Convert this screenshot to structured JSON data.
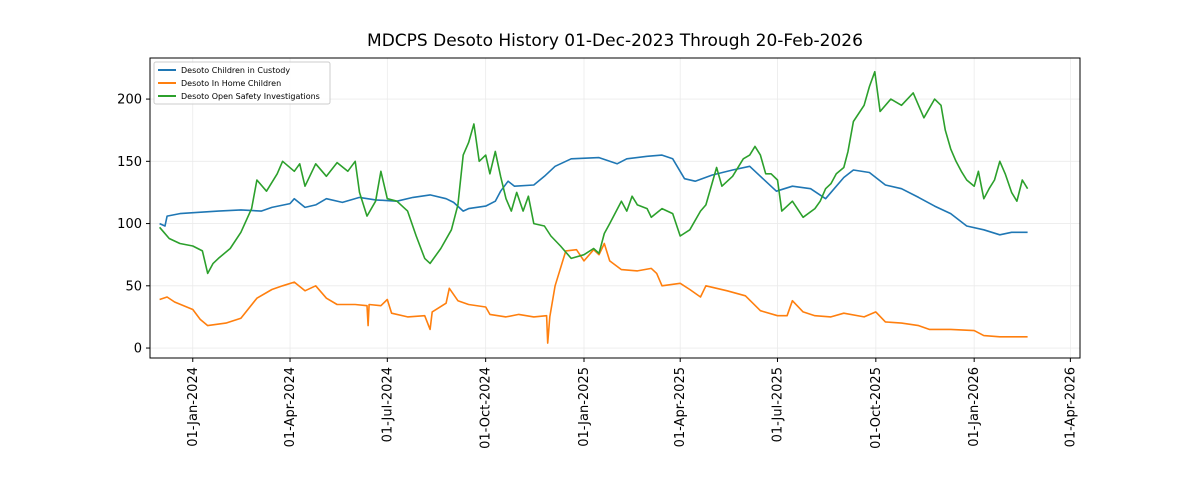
{
  "chart_data": {
    "type": "line",
    "title": "MDCPS Desoto History 01-Dec-2023 Through 20-Feb-2026",
    "xlabel": "",
    "ylabel": "",
    "x_range": [
      "2023-11-22",
      "2026-04-10"
    ],
    "ylim": [
      -8,
      233
    ],
    "grid": true,
    "legend_position": "upper-left",
    "x_ticks": [
      "01-Jan-2024",
      "01-Apr-2024",
      "01-Jul-2024",
      "01-Oct-2024",
      "01-Jan-2025",
      "01-Apr-2025",
      "01-Jul-2025",
      "01-Oct-2025",
      "01-Jan-2026",
      "01-Apr-2026"
    ],
    "x_tick_dates": [
      "2024-01-01",
      "2024-04-01",
      "2024-07-01",
      "2024-10-01",
      "2025-01-01",
      "2025-04-01",
      "2025-07-01",
      "2025-10-01",
      "2026-01-01",
      "2026-04-01"
    ],
    "y_ticks": [
      0,
      50,
      100,
      150,
      200
    ],
    "series": [
      {
        "name": "Desoto Children in Custody",
        "color": "#1f77b4",
        "points": [
          [
            "2023-12-01",
            100
          ],
          [
            "2023-12-06",
            98
          ],
          [
            "2023-12-08",
            106
          ],
          [
            "2023-12-20",
            108
          ],
          [
            "2024-01-05",
            109
          ],
          [
            "2024-01-25",
            110
          ],
          [
            "2024-02-15",
            111
          ],
          [
            "2024-03-05",
            110
          ],
          [
            "2024-03-15",
            113
          ],
          [
            "2024-04-01",
            116
          ],
          [
            "2024-04-05",
            120
          ],
          [
            "2024-04-15",
            113
          ],
          [
            "2024-04-25",
            115
          ],
          [
            "2024-05-05",
            120
          ],
          [
            "2024-05-20",
            117
          ],
          [
            "2024-06-05",
            121
          ],
          [
            "2024-06-20",
            119
          ],
          [
            "2024-07-10",
            118
          ],
          [
            "2024-07-25",
            121
          ],
          [
            "2024-08-10",
            123
          ],
          [
            "2024-08-25",
            120
          ],
          [
            "2024-09-01",
            117
          ],
          [
            "2024-09-10",
            110
          ],
          [
            "2024-09-15",
            112
          ],
          [
            "2024-10-01",
            114
          ],
          [
            "2024-10-10",
            118
          ],
          [
            "2024-10-15",
            126
          ],
          [
            "2024-10-22",
            134
          ],
          [
            "2024-10-28",
            130
          ],
          [
            "2024-11-15",
            131
          ],
          [
            "2024-11-25",
            138
          ],
          [
            "2024-12-05",
            146
          ],
          [
            "2024-12-20",
            152
          ],
          [
            "2025-01-15",
            153
          ],
          [
            "2025-02-01",
            148
          ],
          [
            "2025-02-10",
            152
          ],
          [
            "2025-03-01",
            154
          ],
          [
            "2025-03-15",
            155
          ],
          [
            "2025-03-25",
            152
          ],
          [
            "2025-04-05",
            136
          ],
          [
            "2025-04-15",
            134
          ],
          [
            "2025-05-01",
            139
          ],
          [
            "2025-05-20",
            143
          ],
          [
            "2025-06-05",
            146
          ],
          [
            "2025-06-15",
            138
          ],
          [
            "2025-06-30",
            126
          ],
          [
            "2025-07-15",
            130
          ],
          [
            "2025-08-01",
            128
          ],
          [
            "2025-08-15",
            120
          ],
          [
            "2025-09-01",
            137
          ],
          [
            "2025-09-10",
            143
          ],
          [
            "2025-09-25",
            141
          ],
          [
            "2025-10-10",
            131
          ],
          [
            "2025-10-25",
            128
          ],
          [
            "2025-11-10",
            121
          ],
          [
            "2025-11-25",
            114
          ],
          [
            "2025-12-10",
            108
          ],
          [
            "2025-12-25",
            98
          ],
          [
            "2026-01-10",
            95
          ],
          [
            "2026-01-25",
            91
          ],
          [
            "2026-02-05",
            93
          ],
          [
            "2026-02-20",
            93
          ]
        ]
      },
      {
        "name": "Desoto In Home Children",
        "color": "#ff7f0e",
        "points": [
          [
            "2023-12-01",
            39
          ],
          [
            "2023-12-08",
            41
          ],
          [
            "2023-12-15",
            37
          ],
          [
            "2024-01-01",
            31
          ],
          [
            "2024-01-08",
            23
          ],
          [
            "2024-01-15",
            18
          ],
          [
            "2024-02-01",
            20
          ],
          [
            "2024-02-15",
            24
          ],
          [
            "2024-03-01",
            40
          ],
          [
            "2024-03-15",
            47
          ],
          [
            "2024-03-25",
            50
          ],
          [
            "2024-04-05",
            53
          ],
          [
            "2024-04-15",
            46
          ],
          [
            "2024-04-25",
            50
          ],
          [
            "2024-05-05",
            40
          ],
          [
            "2024-05-15",
            35
          ],
          [
            "2024-06-01",
            35
          ],
          [
            "2024-06-12",
            34
          ],
          [
            "2024-06-13",
            18
          ],
          [
            "2024-06-14",
            35
          ],
          [
            "2024-06-25",
            34
          ],
          [
            "2024-07-01",
            39
          ],
          [
            "2024-07-05",
            28
          ],
          [
            "2024-07-20",
            25
          ],
          [
            "2024-08-05",
            26
          ],
          [
            "2024-08-10",
            15
          ],
          [
            "2024-08-12",
            29
          ],
          [
            "2024-08-25",
            36
          ],
          [
            "2024-08-28",
            48
          ],
          [
            "2024-09-05",
            38
          ],
          [
            "2024-09-15",
            35
          ],
          [
            "2024-10-01",
            33
          ],
          [
            "2024-10-05",
            27
          ],
          [
            "2024-10-20",
            25
          ],
          [
            "2024-11-01",
            27
          ],
          [
            "2024-11-15",
            25
          ],
          [
            "2024-11-27",
            26
          ],
          [
            "2024-11-28",
            4
          ],
          [
            "2024-11-30",
            25
          ],
          [
            "2024-12-05",
            50
          ],
          [
            "2024-12-15",
            78
          ],
          [
            "2024-12-25",
            79
          ],
          [
            "2025-01-01",
            70
          ],
          [
            "2025-01-10",
            79
          ],
          [
            "2025-01-15",
            75
          ],
          [
            "2025-01-20",
            84
          ],
          [
            "2025-01-25",
            70
          ],
          [
            "2025-02-05",
            63
          ],
          [
            "2025-02-20",
            62
          ],
          [
            "2025-03-05",
            64
          ],
          [
            "2025-03-10",
            60
          ],
          [
            "2025-03-15",
            50
          ],
          [
            "2025-04-01",
            52
          ],
          [
            "2025-04-10",
            47
          ],
          [
            "2025-04-20",
            41
          ],
          [
            "2025-04-25",
            50
          ],
          [
            "2025-05-15",
            46
          ],
          [
            "2025-06-01",
            42
          ],
          [
            "2025-06-15",
            30
          ],
          [
            "2025-07-01",
            26
          ],
          [
            "2025-07-10",
            26
          ],
          [
            "2025-07-15",
            38
          ],
          [
            "2025-07-25",
            29
          ],
          [
            "2025-08-05",
            26
          ],
          [
            "2025-08-20",
            25
          ],
          [
            "2025-09-01",
            28
          ],
          [
            "2025-09-20",
            25
          ],
          [
            "2025-10-01",
            29
          ],
          [
            "2025-10-10",
            21
          ],
          [
            "2025-10-25",
            20
          ],
          [
            "2025-11-10",
            18
          ],
          [
            "2025-11-20",
            15
          ],
          [
            "2025-12-10",
            15
          ],
          [
            "2026-01-01",
            14
          ],
          [
            "2026-01-10",
            10
          ],
          [
            "2026-01-25",
            9
          ],
          [
            "2026-02-20",
            9
          ]
        ]
      },
      {
        "name": "Desoto Open Safety Investigations",
        "color": "#2ca02c",
        "points": [
          [
            "2023-12-01",
            97
          ],
          [
            "2023-12-05",
            93
          ],
          [
            "2023-12-10",
            88
          ],
          [
            "2023-12-20",
            84
          ],
          [
            "2024-01-01",
            82
          ],
          [
            "2024-01-10",
            78
          ],
          [
            "2024-01-15",
            60
          ],
          [
            "2024-01-20",
            68
          ],
          [
            "2024-01-25",
            72
          ],
          [
            "2024-02-05",
            80
          ],
          [
            "2024-02-15",
            93
          ],
          [
            "2024-02-25",
            112
          ],
          [
            "2024-03-01",
            135
          ],
          [
            "2024-03-10",
            126
          ],
          [
            "2024-03-20",
            140
          ],
          [
            "2024-03-25",
            150
          ],
          [
            "2024-04-05",
            142
          ],
          [
            "2024-04-10",
            148
          ],
          [
            "2024-04-15",
            130
          ],
          [
            "2024-04-25",
            148
          ],
          [
            "2024-05-05",
            138
          ],
          [
            "2024-05-15",
            149
          ],
          [
            "2024-05-25",
            142
          ],
          [
            "2024-06-01",
            150
          ],
          [
            "2024-06-05",
            125
          ],
          [
            "2024-06-12",
            106
          ],
          [
            "2024-06-20",
            118
          ],
          [
            "2024-06-25",
            142
          ],
          [
            "2024-07-01",
            120
          ],
          [
            "2024-07-10",
            118
          ],
          [
            "2024-07-20",
            110
          ],
          [
            "2024-07-28",
            90
          ],
          [
            "2024-08-05",
            72
          ],
          [
            "2024-08-10",
            68
          ],
          [
            "2024-08-20",
            80
          ],
          [
            "2024-08-30",
            95
          ],
          [
            "2024-09-05",
            115
          ],
          [
            "2024-09-10",
            155
          ],
          [
            "2024-09-15",
            165
          ],
          [
            "2024-09-20",
            180
          ],
          [
            "2024-09-25",
            150
          ],
          [
            "2024-10-01",
            155
          ],
          [
            "2024-10-05",
            140
          ],
          [
            "2024-10-10",
            158
          ],
          [
            "2024-10-15",
            138
          ],
          [
            "2024-10-20",
            120
          ],
          [
            "2024-10-25",
            110
          ],
          [
            "2024-10-30",
            125
          ],
          [
            "2024-11-05",
            110
          ],
          [
            "2024-11-10",
            122
          ],
          [
            "2024-11-15",
            100
          ],
          [
            "2024-11-25",
            98
          ],
          [
            "2024-12-01",
            90
          ],
          [
            "2024-12-10",
            82
          ],
          [
            "2024-12-20",
            72
          ],
          [
            "2025-01-01",
            75
          ],
          [
            "2025-01-10",
            80
          ],
          [
            "2025-01-15",
            76
          ],
          [
            "2025-01-20",
            92
          ],
          [
            "2025-01-25",
            100
          ],
          [
            "2025-02-05",
            118
          ],
          [
            "2025-02-10",
            110
          ],
          [
            "2025-02-15",
            122
          ],
          [
            "2025-02-20",
            115
          ],
          [
            "2025-03-01",
            112
          ],
          [
            "2025-03-05",
            105
          ],
          [
            "2025-03-15",
            112
          ],
          [
            "2025-03-25",
            108
          ],
          [
            "2025-04-01",
            90
          ],
          [
            "2025-04-10",
            95
          ],
          [
            "2025-04-20",
            110
          ],
          [
            "2025-04-25",
            115
          ],
          [
            "2025-05-05",
            145
          ],
          [
            "2025-05-10",
            130
          ],
          [
            "2025-05-20",
            138
          ],
          [
            "2025-05-30",
            152
          ],
          [
            "2025-06-05",
            155
          ],
          [
            "2025-06-10",
            162
          ],
          [
            "2025-06-15",
            155
          ],
          [
            "2025-06-20",
            140
          ],
          [
            "2025-06-25",
            140
          ],
          [
            "2025-07-01",
            135
          ],
          [
            "2025-07-05",
            110
          ],
          [
            "2025-07-15",
            118
          ],
          [
            "2025-07-25",
            105
          ],
          [
            "2025-08-05",
            112
          ],
          [
            "2025-08-10",
            118
          ],
          [
            "2025-08-15",
            128
          ],
          [
            "2025-08-20",
            132
          ],
          [
            "2025-08-25",
            140
          ],
          [
            "2025-09-01",
            145
          ],
          [
            "2025-09-05",
            158
          ],
          [
            "2025-09-10",
            182
          ],
          [
            "2025-09-20",
            195
          ],
          [
            "2025-09-25",
            210
          ],
          [
            "2025-09-30",
            222
          ],
          [
            "2025-10-05",
            190
          ],
          [
            "2025-10-15",
            200
          ],
          [
            "2025-10-25",
            195
          ],
          [
            "2025-11-05",
            205
          ],
          [
            "2025-11-15",
            185
          ],
          [
            "2025-11-25",
            200
          ],
          [
            "2025-12-01",
            195
          ],
          [
            "2025-12-05",
            175
          ],
          [
            "2025-12-10",
            160
          ],
          [
            "2025-12-15",
            150
          ],
          [
            "2025-12-20",
            142
          ],
          [
            "2025-12-25",
            135
          ],
          [
            "2026-01-01",
            130
          ],
          [
            "2026-01-05",
            142
          ],
          [
            "2026-01-10",
            120
          ],
          [
            "2026-01-15",
            128
          ],
          [
            "2026-01-20",
            135
          ],
          [
            "2026-01-25",
            150
          ],
          [
            "2026-01-30",
            140
          ],
          [
            "2026-02-05",
            125
          ],
          [
            "2026-02-10",
            118
          ],
          [
            "2026-02-15",
            135
          ],
          [
            "2026-02-20",
            128
          ]
        ]
      }
    ]
  }
}
